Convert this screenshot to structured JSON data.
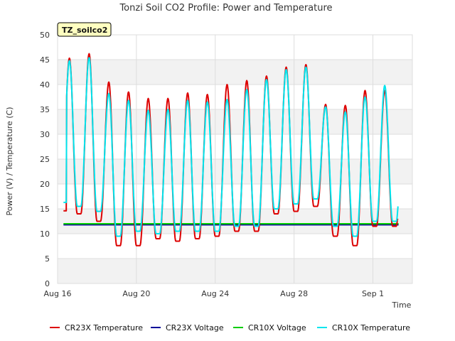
{
  "chart_data": {
    "type": "line",
    "title": "Tonzi Soil CO2 Profile: Power and Temperature",
    "xlabel": "Time",
    "ylabel": "Power (V) / Temperature (C)",
    "site_label": "TZ_soilco2",
    "ylim": [
      0,
      50
    ],
    "xlim_days": [
      0,
      18
    ],
    "x_ticks": [
      {
        "day": 0,
        "label": "Aug 16"
      },
      {
        "day": 4,
        "label": "Aug 20"
      },
      {
        "day": 8,
        "label": "Aug 24"
      },
      {
        "day": 12,
        "label": "Aug 28"
      },
      {
        "day": 16,
        "label": "Sep 1"
      }
    ],
    "y_ticks": [
      0,
      5,
      10,
      15,
      20,
      25,
      30,
      35,
      40,
      45,
      50
    ],
    "grid": true,
    "legend_position": "bottom",
    "series": [
      {
        "name": "CR23X Temperature",
        "color": "#dd0000",
        "daily_max": [
          45.3,
          46.2,
          40.5,
          38.5,
          37.2,
          37.2,
          38.3,
          38.0,
          40.0,
          40.8,
          41.7,
          43.5,
          44.0,
          36.0,
          35.8,
          38.8,
          38.8
        ],
        "daily_min": [
          14.6,
          14.0,
          12.5,
          7.6,
          7.6,
          9.0,
          8.5,
          9.0,
          9.5,
          10.5,
          10.5,
          14.0,
          14.5,
          15.5,
          9.5,
          7.6,
          11.5
        ],
        "start_value": 14.6,
        "end_value": 13.0
      },
      {
        "name": "CR23X Voltage",
        "color": "#000099",
        "constant": 11.8
      },
      {
        "name": "CR10X Voltage",
        "color": "#00cc00",
        "constant": 12.0
      },
      {
        "name": "CR10X Temperature",
        "color": "#00e5ee",
        "daily_max": [
          44.8,
          45.4,
          38.2,
          36.8,
          34.8,
          35.0,
          36.8,
          36.5,
          37.0,
          39.0,
          41.0,
          43.0,
          43.5,
          35.5,
          34.5,
          37.5,
          39.8
        ],
        "daily_min": [
          16.3,
          15.5,
          14.5,
          9.5,
          10.5,
          10.0,
          10.5,
          10.5,
          10.5,
          11.5,
          11.5,
          15.0,
          16.0,
          17.0,
          11.5,
          9.5,
          12.5
        ],
        "start_value": 16.3,
        "end_value": 15.5
      }
    ]
  }
}
